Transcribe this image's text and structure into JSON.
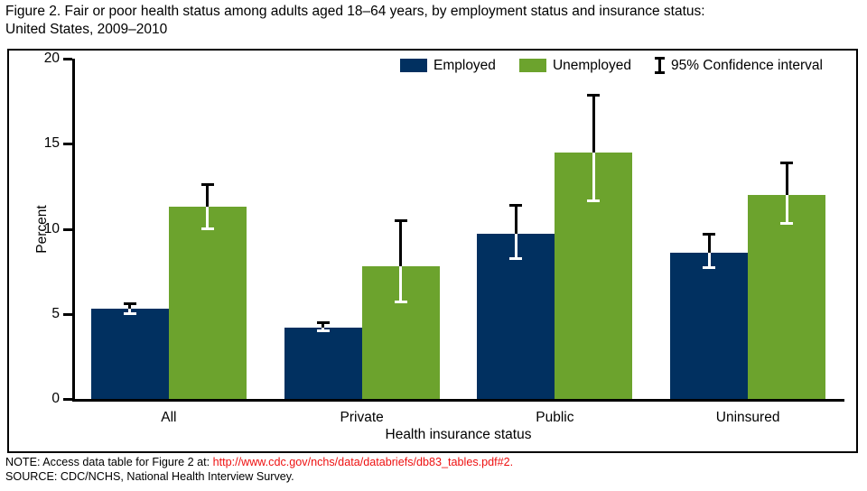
{
  "title": {
    "line1": "Figure 2. Fair or poor health status among adults aged 18–64 years, by employment status and insurance status:",
    "line2": "United States, 2009–2010"
  },
  "legend": {
    "items": [
      {
        "label": "Employed",
        "color": "#013060"
      },
      {
        "label": "Unemployed",
        "color": "#6ca32d"
      }
    ],
    "ci_label": "95% Confidence interval"
  },
  "chart_data": {
    "type": "bar",
    "title": "Fair or poor health status among adults aged 18–64 years, by employment status and insurance status: United States, 2009–2010",
    "categories": [
      "All",
      "Private",
      "Public",
      "Uninsured"
    ],
    "series": [
      {
        "name": "Employed",
        "color": "#013060",
        "values": [
          5.3,
          4.2,
          9.7,
          8.6
        ],
        "ci_low": [
          5.0,
          4.0,
          8.2,
          7.7
        ],
        "ci_high": [
          5.6,
          4.5,
          11.4,
          9.7
        ]
      },
      {
        "name": "Unemployed",
        "color": "#6ca32d",
        "values": [
          11.3,
          7.8,
          14.5,
          12.0
        ],
        "ci_low": [
          10.0,
          5.7,
          11.6,
          10.3
        ],
        "ci_high": [
          12.6,
          10.5,
          17.9,
          13.9
        ]
      }
    ],
    "xlabel": "Health insurance status",
    "ylabel": "Percent",
    "ylim": [
      0,
      20
    ],
    "yticks": [
      0,
      5,
      10,
      15,
      20
    ],
    "grid": false,
    "legend_position": "top-right",
    "error_bars": "95% Confidence interval"
  },
  "notes": {
    "note_prefix": "NOTE: Access data table for Figure 2 at: ",
    "note_link": "http://www.cdc.gov/nchs/data/databriefs/db83_tables.pdf#2.",
    "source": "SOURCE: CDC/NCHS, National Health Interview Survey.",
    "link_color": "#ee1111"
  }
}
